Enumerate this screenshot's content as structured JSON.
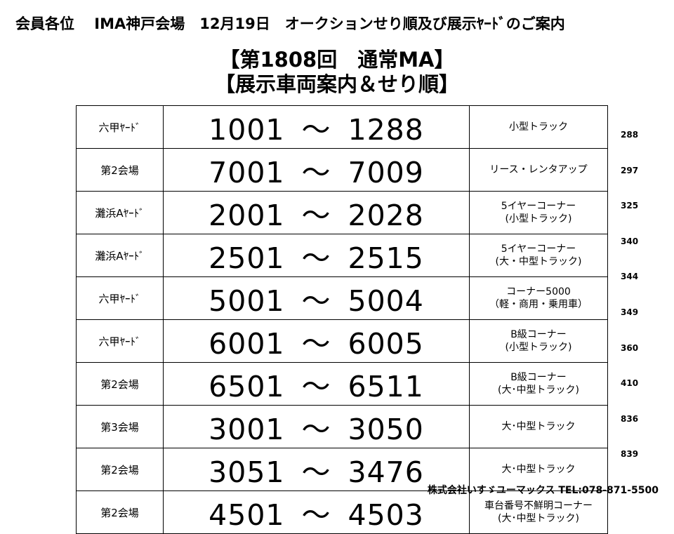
{
  "header": "会員各位　 IMA神戸会場　12月19日　オークションせり順及び展示ﾔｰﾄﾞのご案内",
  "title_line1": "【第1808回　通常MA】",
  "title_line2": "【展示車両案内＆せり順】",
  "rows": [
    {
      "venue": "六甲ﾔｰﾄﾞ",
      "start": "1001",
      "end": "1288",
      "note1": "小型トラック",
      "note2": "",
      "count": "288"
    },
    {
      "venue": "第2会場",
      "start": "7001",
      "end": "7009",
      "note1": "リース・レンタアップ",
      "note2": "",
      "count": "297"
    },
    {
      "venue": "灘浜Aﾔｰﾄﾞ",
      "start": "2001",
      "end": "2028",
      "note1": "5イヤーコーナー",
      "note2": "(小型トラック)",
      "count": "325"
    },
    {
      "venue": "灘浜Aﾔｰﾄﾞ",
      "start": "2501",
      "end": "2515",
      "note1": "5イヤーコーナー",
      "note2": "(大・中型トラック)",
      "count": "340"
    },
    {
      "venue": "六甲ﾔｰﾄﾞ",
      "start": "5001",
      "end": "5004",
      "note1": "コーナー5000",
      "note2": "（軽・商用・乗用車）",
      "count": "344"
    },
    {
      "venue": "六甲ﾔｰﾄﾞ",
      "start": "6001",
      "end": "6005",
      "note1": "B級コーナー",
      "note2": "(小型トラック)",
      "count": "349"
    },
    {
      "venue": "第2会場",
      "start": "6501",
      "end": "6511",
      "note1": "B級コーナー",
      "note2": "(大･中型トラック)",
      "count": "360"
    },
    {
      "venue": "第3会場",
      "start": "3001",
      "end": "3050",
      "note1": "大･中型トラック",
      "note2": "",
      "count": "410"
    },
    {
      "venue": "第2会場",
      "start": "3051",
      "end": "3476",
      "note1": "大･中型トラック",
      "note2": "",
      "count": "836"
    },
    {
      "venue": "第2会場",
      "start": "4501",
      "end": "4503",
      "note1": "車台番号不鮮明コーナー",
      "note2": "(大･中型トラック)",
      "count": "839"
    }
  ],
  "tilde": "～",
  "footer": "株式会社いすゞユーマックス TEL:078-871-5500"
}
